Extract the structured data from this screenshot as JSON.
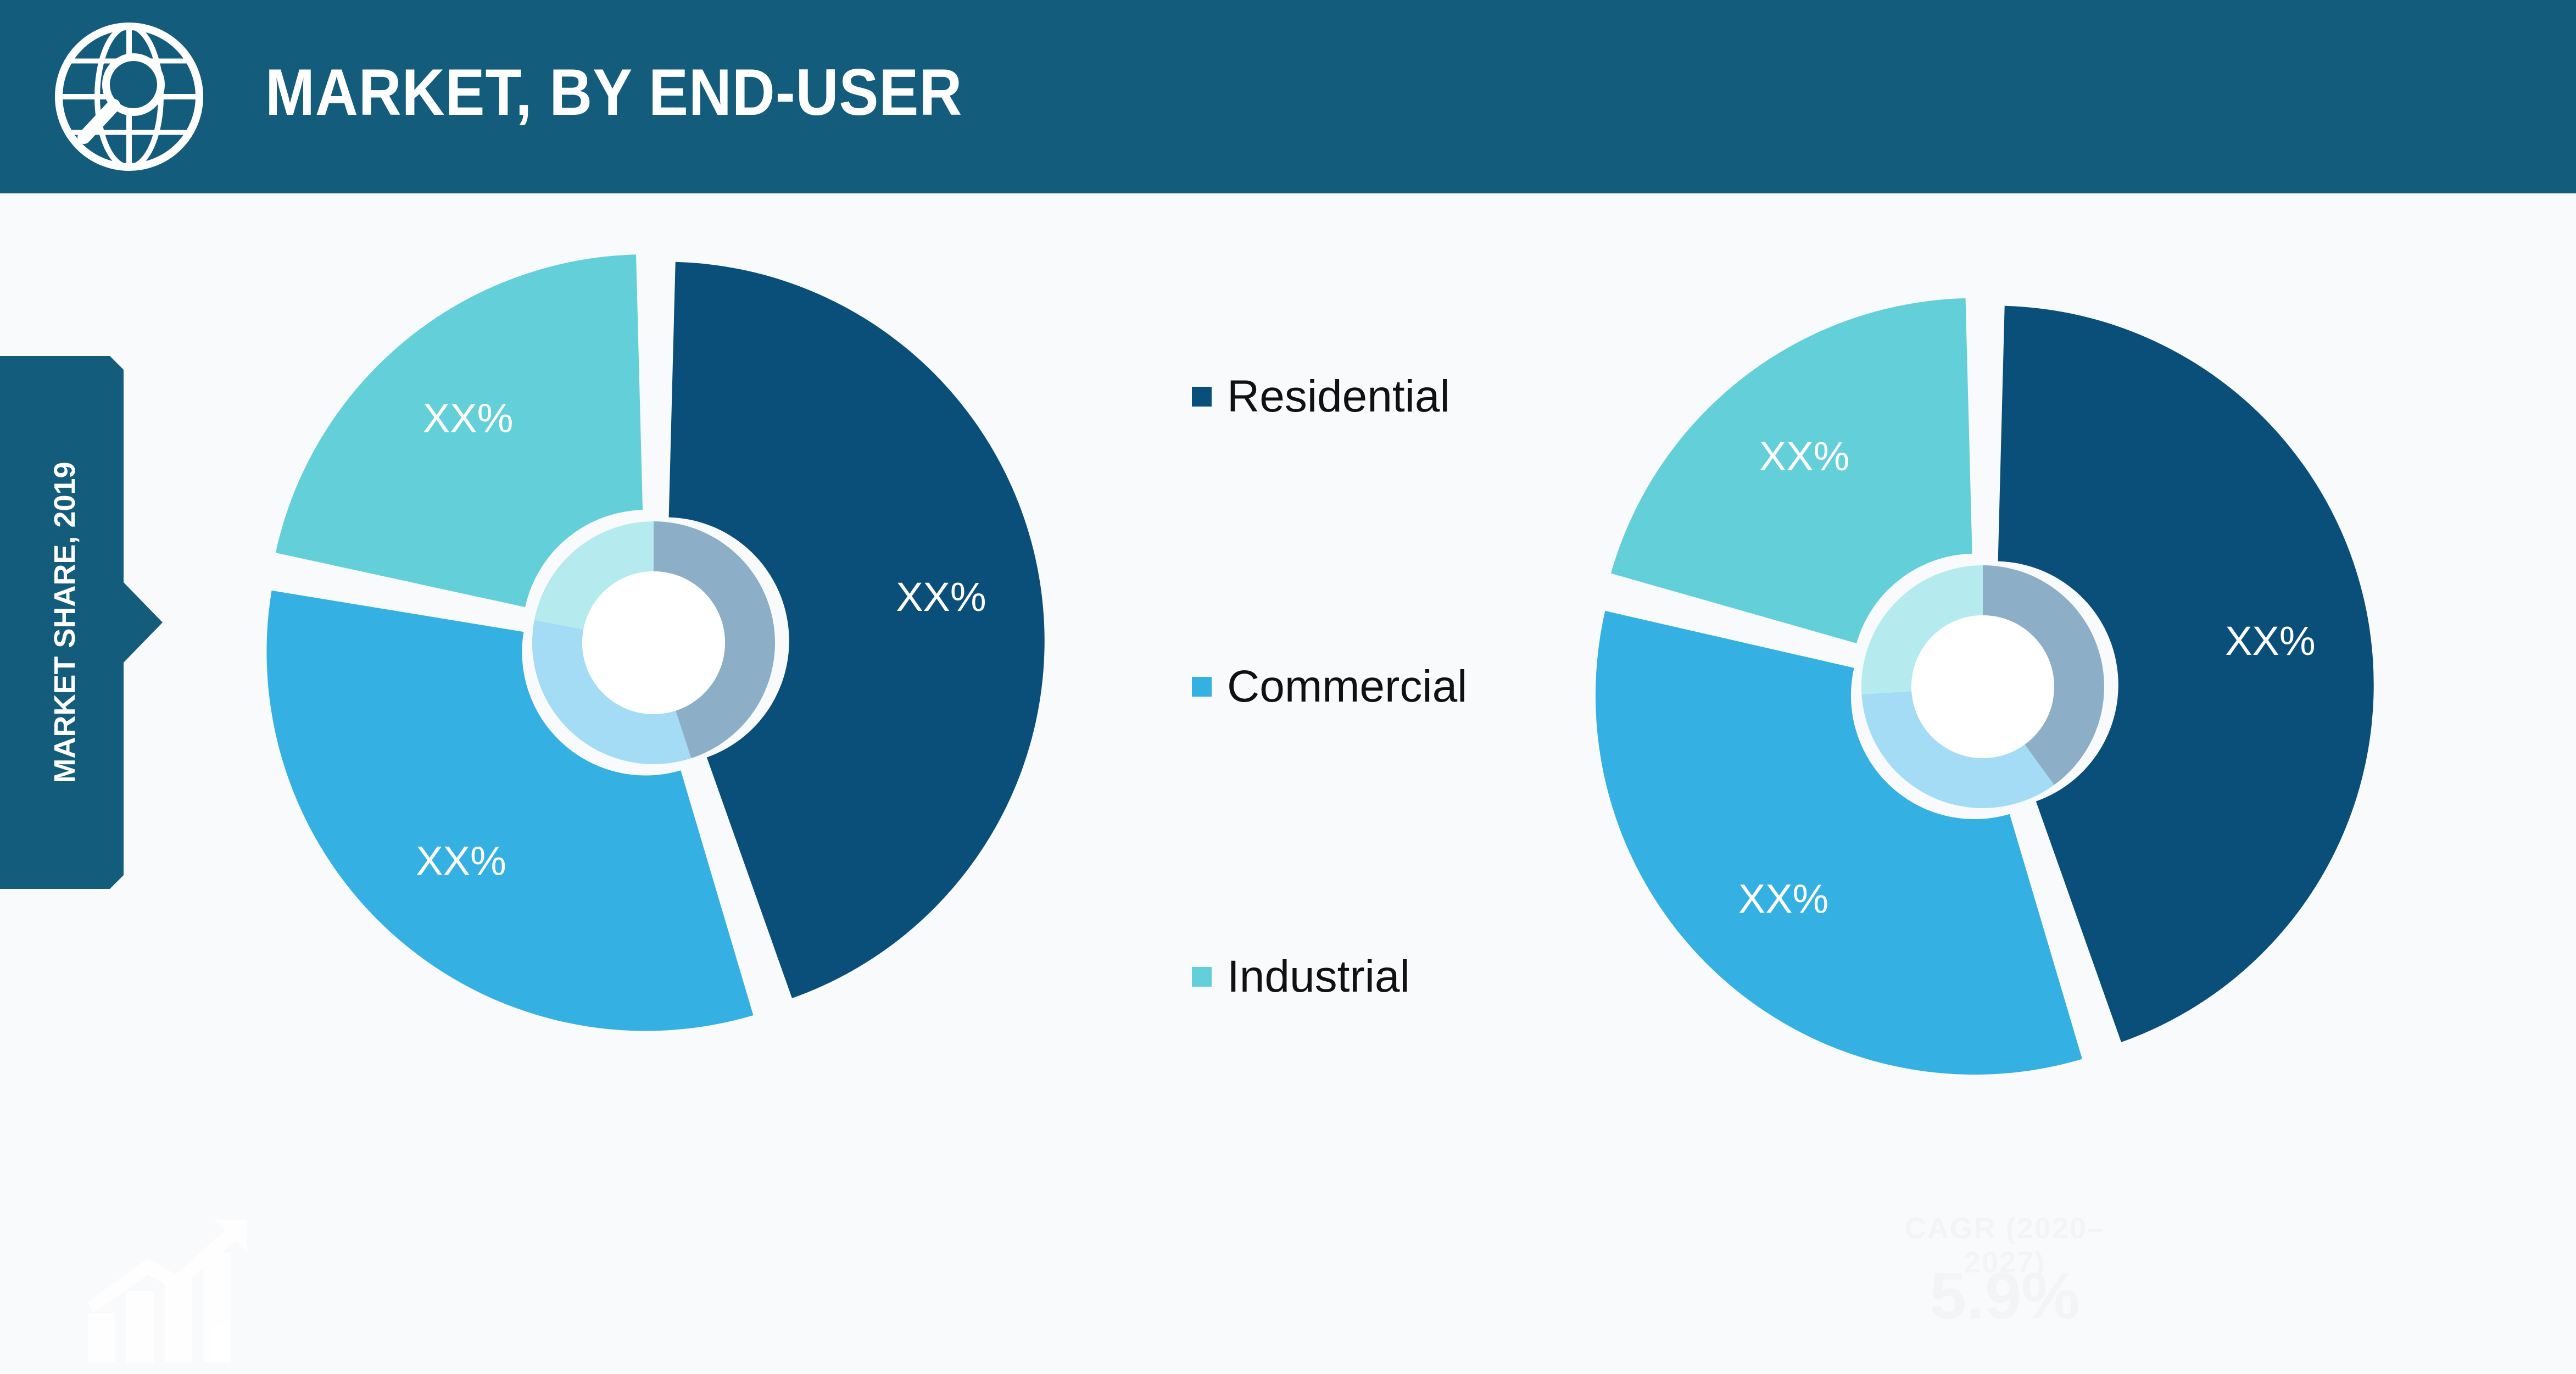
{
  "header": {
    "title": "MARKET, BY END-USER"
  },
  "side_label": "MARKET SHARE, 2019",
  "colors": {
    "header_bg": "#145c7c",
    "residential": "#0a4f7a",
    "commercial": "#35b0e2",
    "industrial": "#63cfd9",
    "residential_inner": "#8caec6",
    "commercial_inner": "#a3dcf4",
    "industrial_inner": "#b5ebef"
  },
  "legend": [
    {
      "label": "Residential",
      "color": "#0a4f7a"
    },
    {
      "label": "Commercial",
      "color": "#35b0e2"
    },
    {
      "label": "Industrial",
      "color": "#63cfd9"
    }
  ],
  "cagr": {
    "label": "CAGR (2020–2027)",
    "value": "5.9%"
  },
  "chart_data": [
    {
      "type": "pie",
      "variant": "donut",
      "title": "",
      "categories": [
        "Residential",
        "Commercial",
        "Industrial"
      ],
      "values": [
        45,
        33,
        22
      ],
      "inner_values": [
        45,
        33,
        22
      ],
      "data_labels": [
        "XX%",
        "XX%",
        "XX%"
      ],
      "legend_position": "center"
    },
    {
      "type": "pie",
      "variant": "donut",
      "title": "",
      "categories": [
        "Residential",
        "Commercial",
        "Industrial"
      ],
      "values": [
        45,
        34,
        21
      ],
      "inner_values": [
        40,
        34,
        26
      ],
      "data_labels": [
        "XX%",
        "XX%",
        "XX%"
      ],
      "legend_position": "center"
    }
  ]
}
